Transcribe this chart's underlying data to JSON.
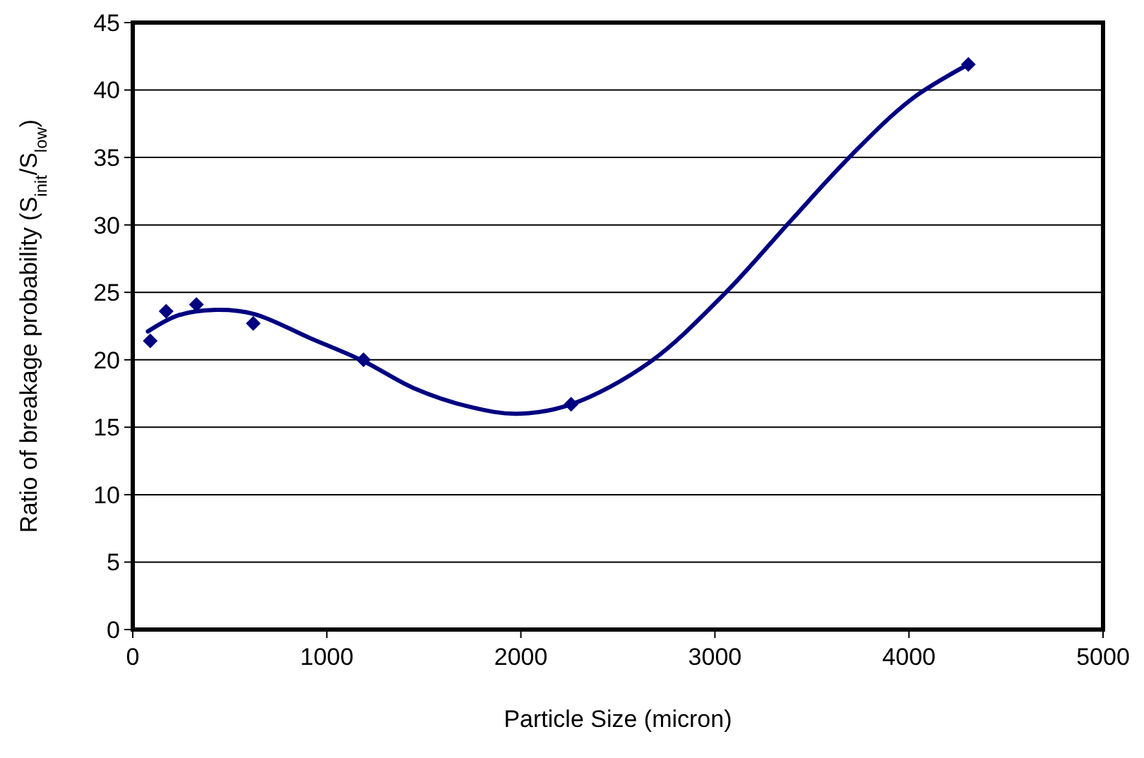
{
  "chart_data": {
    "type": "scatter",
    "xlabel": "Particle Size (micron)",
    "ylabel": "Ratio of breakage probability (S$_{init}$/S$_{low}$)",
    "xlim": [
      0,
      5000
    ],
    "xticks": [
      0,
      1000,
      2000,
      3000,
      4000,
      5000
    ],
    "ylim": [
      0,
      45
    ],
    "yticks": [
      0,
      5,
      10,
      15,
      20,
      25,
      30,
      35,
      40,
      45
    ],
    "grid": "y",
    "marker": "diamond",
    "series": [
      {
        "color": "#000080",
        "x": [
          90,
          172,
          328,
          621,
          1189,
          2259,
          4306
        ],
        "values": [
          21.4,
          23.6,
          24.1,
          22.7,
          20.0,
          16.7,
          41.9
        ]
      },
      {
        "type": "line",
        "color": "#000080",
        "marker": "none",
        "line_style": "solid",
        "x": [
          78,
          236,
          430,
          624,
          915,
          1189,
          1448,
          1740,
          1982,
          2259,
          2662,
          3050,
          3390,
          3705,
          4020,
          4306
        ],
        "values": [
          22.1,
          23.3,
          23.7,
          23.4,
          21.6,
          19.9,
          17.9,
          16.5,
          16.0,
          16.7,
          19.8,
          24.9,
          30.3,
          35.2,
          39.4,
          41.9
        ]
      }
    ]
  }
}
